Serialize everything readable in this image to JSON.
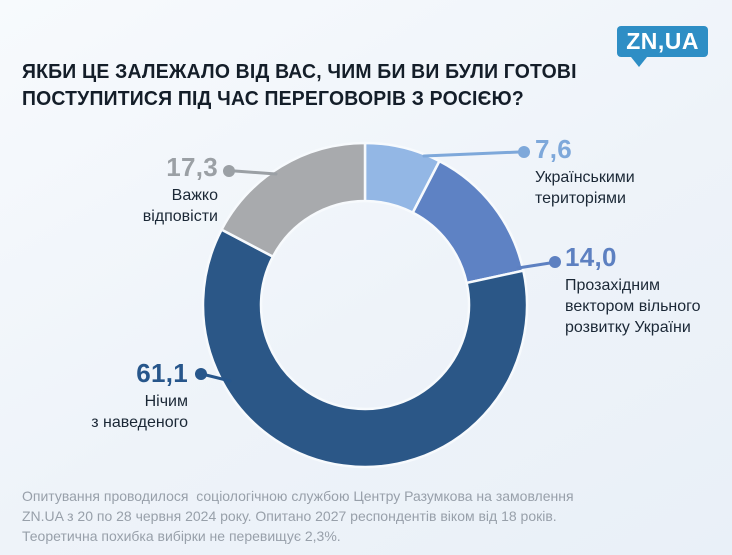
{
  "header": {
    "title": "ЯКБИ ЦЕ ЗАЛЕЖАЛО ВІД ВАС, ЧИМ БИ ВИ БУЛИ ГОТОВІ\nПОСТУПИТИСЯ ПІД ЧАС ПЕРЕГОВОРІВ З РОСІЄЮ?",
    "logo_text": "ZN,UA",
    "logo_color": "#2e8ec5"
  },
  "chart_data": {
    "type": "pie",
    "variant": "donut",
    "title": "Якби це залежало від вас, чим би ви були готові поступитися під час переговорів з Росією?",
    "start_angle_deg": 0,
    "direction": "clockwise",
    "donut_hole_ratio": 0.64,
    "units": "%",
    "segments": [
      {
        "label": "Українськими територіями",
        "label_lines": "Українськими\nтериторіями",
        "value": 7.6,
        "display": "7,6",
        "color": "#93b7e5",
        "accent": "#7ea8da"
      },
      {
        "label": "Прозахідним вектором вільного розвитку України",
        "label_lines": "Прозахідним\nвектором вільного\nрозвитку України",
        "value": 14.0,
        "display": "14,0",
        "color": "#5e82c4",
        "accent": "#5d80c1"
      },
      {
        "label": "Нічим з наведеного",
        "label_lines": "Нічим\nз наведеного",
        "value": 61.1,
        "display": "61,1",
        "color": "#2b5787",
        "accent": "#27568b"
      },
      {
        "label": "Важко відповісти",
        "label_lines": "Важко\nвідповісти",
        "value": 17.3,
        "display": "17,3",
        "color": "#a8aaad",
        "accent": "#9ba0a5"
      }
    ]
  },
  "footer": {
    "note": "Опитування проводилося  соціологічною службою Центру Разумкова на замовлення\nZN.UA з 20 по 28 червня 2024 року. Опитано 2027 респондентів віком від 18 років.\nТеоретична похибка вибірки не перевищує 2,3%."
  }
}
